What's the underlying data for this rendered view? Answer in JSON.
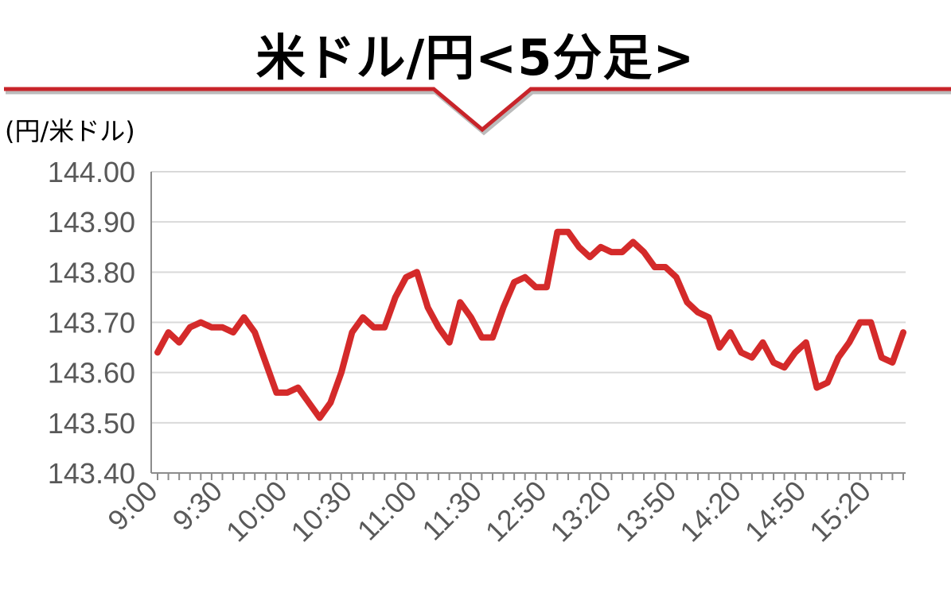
{
  "title": "米ドル/円<5分足>",
  "y_unit_label": "(円/米ドル)",
  "colors": {
    "line": "#d42a2a",
    "banner": "#c8242a",
    "grid": "#d9d9d9",
    "axis": "#8c8c8c",
    "tick_text": "#595959"
  },
  "chart_data": {
    "type": "line",
    "ylim": [
      143.4,
      144.0
    ],
    "y_ticks": [
      "144.00",
      "143.90",
      "143.80",
      "143.70",
      "143.60",
      "143.50",
      "143.40"
    ],
    "x_tick_labels": [
      "9:00",
      "9:30",
      "10:00",
      "10:30",
      "11:00",
      "11:30",
      "12:50",
      "13:20",
      "13:50",
      "14:20",
      "14:50",
      "15:20"
    ],
    "grid": true,
    "legend": "none",
    "series": [
      {
        "values": [
          143.64,
          143.68,
          143.66,
          143.69,
          143.7,
          143.69,
          143.69,
          143.68,
          143.71,
          143.68,
          143.62,
          143.56,
          143.56,
          143.57,
          143.54,
          143.51,
          143.54,
          143.6,
          143.68,
          143.71,
          143.69,
          143.69,
          143.75,
          143.79,
          143.8,
          143.73,
          143.69,
          143.66,
          143.74,
          143.71,
          143.67,
          143.67,
          143.73,
          143.78,
          143.79,
          143.77,
          143.77,
          143.88,
          143.88,
          143.85,
          143.83,
          143.85,
          143.84,
          143.84,
          143.86,
          143.84,
          143.81,
          143.81,
          143.79,
          143.74,
          143.72,
          143.71,
          143.65,
          143.68,
          143.64,
          143.63,
          143.66,
          143.62,
          143.61,
          143.64,
          143.66,
          143.57,
          143.58,
          143.63,
          143.66,
          143.7,
          143.7,
          143.63,
          143.62,
          143.68
        ]
      }
    ]
  }
}
